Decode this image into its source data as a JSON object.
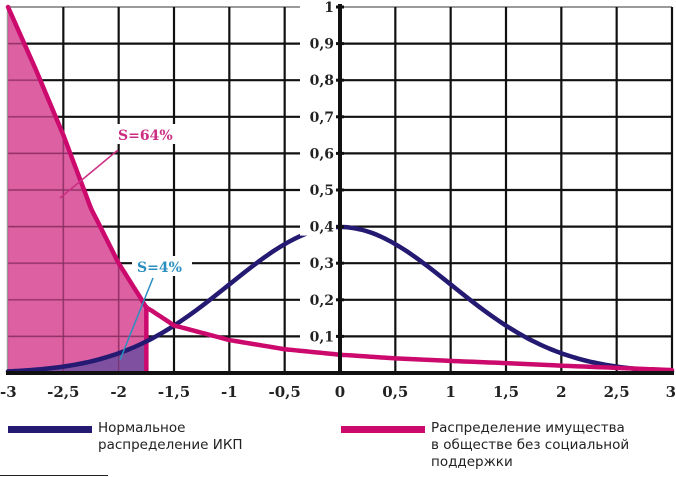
{
  "chart_data": {
    "type": "line",
    "title": "",
    "xlabel": "",
    "ylabel": "",
    "xlim": [
      -3,
      3
    ],
    "ylim": [
      0,
      1
    ],
    "grid": true,
    "x_ticks": [
      -3,
      -2.5,
      -2,
      -1.5,
      -1,
      -0.5,
      0,
      0.5,
      1,
      1.5,
      2,
      2.5,
      3
    ],
    "x_tick_labels": [
      "-3",
      "-2,5",
      "-2",
      "-1,5",
      "-1",
      "-0,5",
      "0",
      "0,5",
      "1",
      "1,5",
      "2",
      "2,5",
      "3"
    ],
    "y_ticks": [
      0.1,
      0.2,
      0.3,
      0.4,
      0.5,
      0.6,
      0.7,
      0.8,
      0.9,
      1
    ],
    "y_tick_labels": [
      "0,1",
      "0,2",
      "0,3",
      "0,4",
      "0,5",
      "0,6",
      "0,7",
      "0,8",
      "0,9",
      "1"
    ],
    "series": [
      {
        "name": "Нормальное распределение ИКП",
        "color": "#241a72",
        "x": [
          -3,
          -2.5,
          -2,
          -1.75,
          -1.5,
          -1,
          -0.5,
          0,
          0.5,
          1,
          1.5,
          2,
          2.5,
          3
        ],
        "values": [
          0.004,
          0.018,
          0.054,
          0.086,
          0.13,
          0.242,
          0.352,
          0.399,
          0.352,
          0.242,
          0.13,
          0.054,
          0.018,
          0.004
        ]
      },
      {
        "name": "Распределение имущества в обществе без социальной поддержки",
        "color": "#cc0a6e",
        "x": [
          -3,
          -2.75,
          -2.5,
          -2.25,
          -2,
          -1.75,
          -1.5,
          -1,
          -0.5,
          0,
          0.5,
          1,
          1.5,
          2,
          2.5,
          3
        ],
        "values": [
          1.0,
          0.83,
          0.65,
          0.45,
          0.3,
          0.18,
          0.13,
          0.09,
          0.065,
          0.05,
          0.04,
          0.033,
          0.027,
          0.02,
          0.014,
          0.008
        ]
      }
    ],
    "shaded_regions": [
      {
        "series": "Распределение имущества в обществе без социальной поддержки",
        "x_from": -3,
        "x_to": -1.75,
        "label": "S=64%",
        "color": "#d9539a"
      },
      {
        "series": "Нормальное распределение ИКП",
        "x_from": -3,
        "x_to": -1.75,
        "label": "S=4%",
        "color": "#7a4fa0"
      }
    ],
    "cutoff_x": -1.75,
    "annotations": [
      {
        "text": "S=64%",
        "color": "#cc2e84"
      },
      {
        "text": "S=4%",
        "color": "#2a8fc0"
      }
    ],
    "legend_position": "bottom"
  },
  "legend": {
    "items": [
      {
        "label": "Нормальное\nраспределение ИКП",
        "color": "#241a72"
      },
      {
        "label": "Распределение имущества\nв обществе без социальной\nподдержки",
        "color": "#cc0a6e"
      }
    ]
  }
}
